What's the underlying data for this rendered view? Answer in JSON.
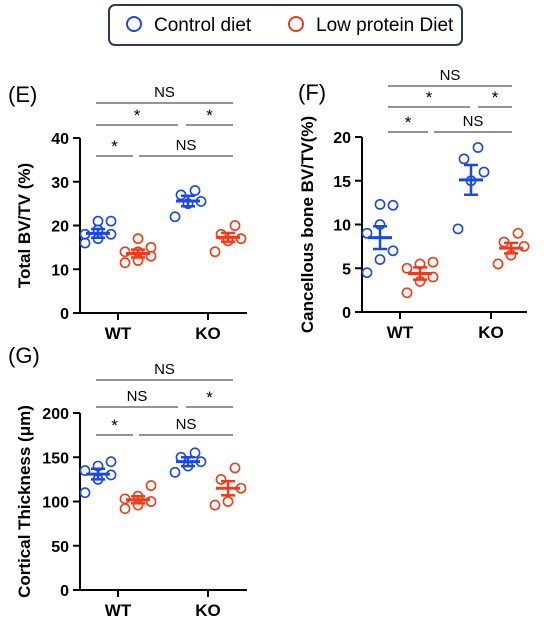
{
  "legend": {
    "control_label": "Control diet",
    "low_protein_label": "Low protein Diet"
  },
  "colors": {
    "control": "#1a47e6",
    "low_protein": "#f23a1a"
  },
  "chart_data": [
    {
      "type": "scatter",
      "panel_label": "(E)",
      "ylabel": "Total BV/TV (%)",
      "ylim": [
        0,
        40
      ],
      "yticks": [
        0,
        10,
        20,
        30,
        40
      ],
      "categories": [
        "WT",
        "KO"
      ],
      "series": [
        {
          "name": "Control diet",
          "group": "WT",
          "points": [
            16,
            17,
            18,
            18,
            19,
            21,
            21
          ],
          "mean": 18.2,
          "sem": 1.0
        },
        {
          "name": "Low protein Diet",
          "group": "WT",
          "points": [
            11.5,
            12,
            13,
            14,
            14,
            15,
            17
          ],
          "mean": 13.6,
          "sem": 0.9
        },
        {
          "name": "Control diet",
          "group": "KO",
          "points": [
            22,
            25,
            25.5,
            27,
            28
          ],
          "mean": 25.6,
          "sem": 1.2
        },
        {
          "name": "Low protein Diet",
          "group": "KO",
          "points": [
            14,
            16.5,
            17,
            18,
            20
          ],
          "mean": 17.3,
          "sem": 1.0
        }
      ],
      "significance": [
        {
          "text": "NS"
        },
        {
          "text": "*"
        },
        {
          "text": "*"
        },
        {
          "text": "*"
        },
        {
          "text": "NS"
        }
      ]
    },
    {
      "type": "scatter",
      "panel_label": "(F)",
      "ylabel": "Cancellous bone BV/TV(%)",
      "ylim": [
        0,
        20
      ],
      "yticks": [
        0,
        5,
        10,
        15,
        20
      ],
      "categories": [
        "WT",
        "KO"
      ],
      "series": [
        {
          "name": "Control diet",
          "group": "WT",
          "points": [
            4.5,
            6,
            7,
            9,
            10,
            12.2,
            12.3
          ],
          "mean": 8.5,
          "sem": 1.3
        },
        {
          "name": "Low protein Diet",
          "group": "WT",
          "points": [
            2.2,
            3.5,
            4,
            5,
            5.5,
            5.7
          ],
          "mean": 4.4,
          "sem": 0.7
        },
        {
          "name": "Control diet",
          "group": "KO",
          "points": [
            9.5,
            15,
            16,
            17.5,
            18.8
          ],
          "mean": 15.1,
          "sem": 1.7
        },
        {
          "name": "Low protein Diet",
          "group": "KO",
          "points": [
            5.5,
            6.5,
            7.5,
            8,
            9
          ],
          "mean": 7.3,
          "sem": 0.6
        }
      ],
      "significance": [
        {
          "text": "NS"
        },
        {
          "text": "*"
        },
        {
          "text": "*"
        },
        {
          "text": "*"
        },
        {
          "text": "NS"
        }
      ]
    },
    {
      "type": "scatter",
      "panel_label": "(G)",
      "ylabel": "Cortical Thickness (μm)",
      "ylim": [
        0,
        200
      ],
      "yticks": [
        0,
        50,
        100,
        150,
        200
      ],
      "categories": [
        "WT",
        "KO"
      ],
      "series": [
        {
          "name": "Control diet",
          "group": "WT",
          "points": [
            110,
            125,
            130,
            135,
            140,
            145
          ],
          "mean": 131,
          "sem": 6
        },
        {
          "name": "Low protein Diet",
          "group": "WT",
          "points": [
            92,
            96,
            100,
            103,
            106,
            118
          ],
          "mean": 102,
          "sem": 4
        },
        {
          "name": "Control diet",
          "group": "KO",
          "points": [
            133,
            140,
            145,
            150,
            155
          ],
          "mean": 145,
          "sem": 5
        },
        {
          "name": "Low protein Diet",
          "group": "KO",
          "points": [
            96,
            100,
            115,
            125,
            138
          ],
          "mean": 115,
          "sem": 8
        }
      ],
      "significance": [
        {
          "text": "NS"
        },
        {
          "text": "NS"
        },
        {
          "text": "*"
        },
        {
          "text": "*"
        },
        {
          "text": "NS"
        }
      ]
    }
  ]
}
